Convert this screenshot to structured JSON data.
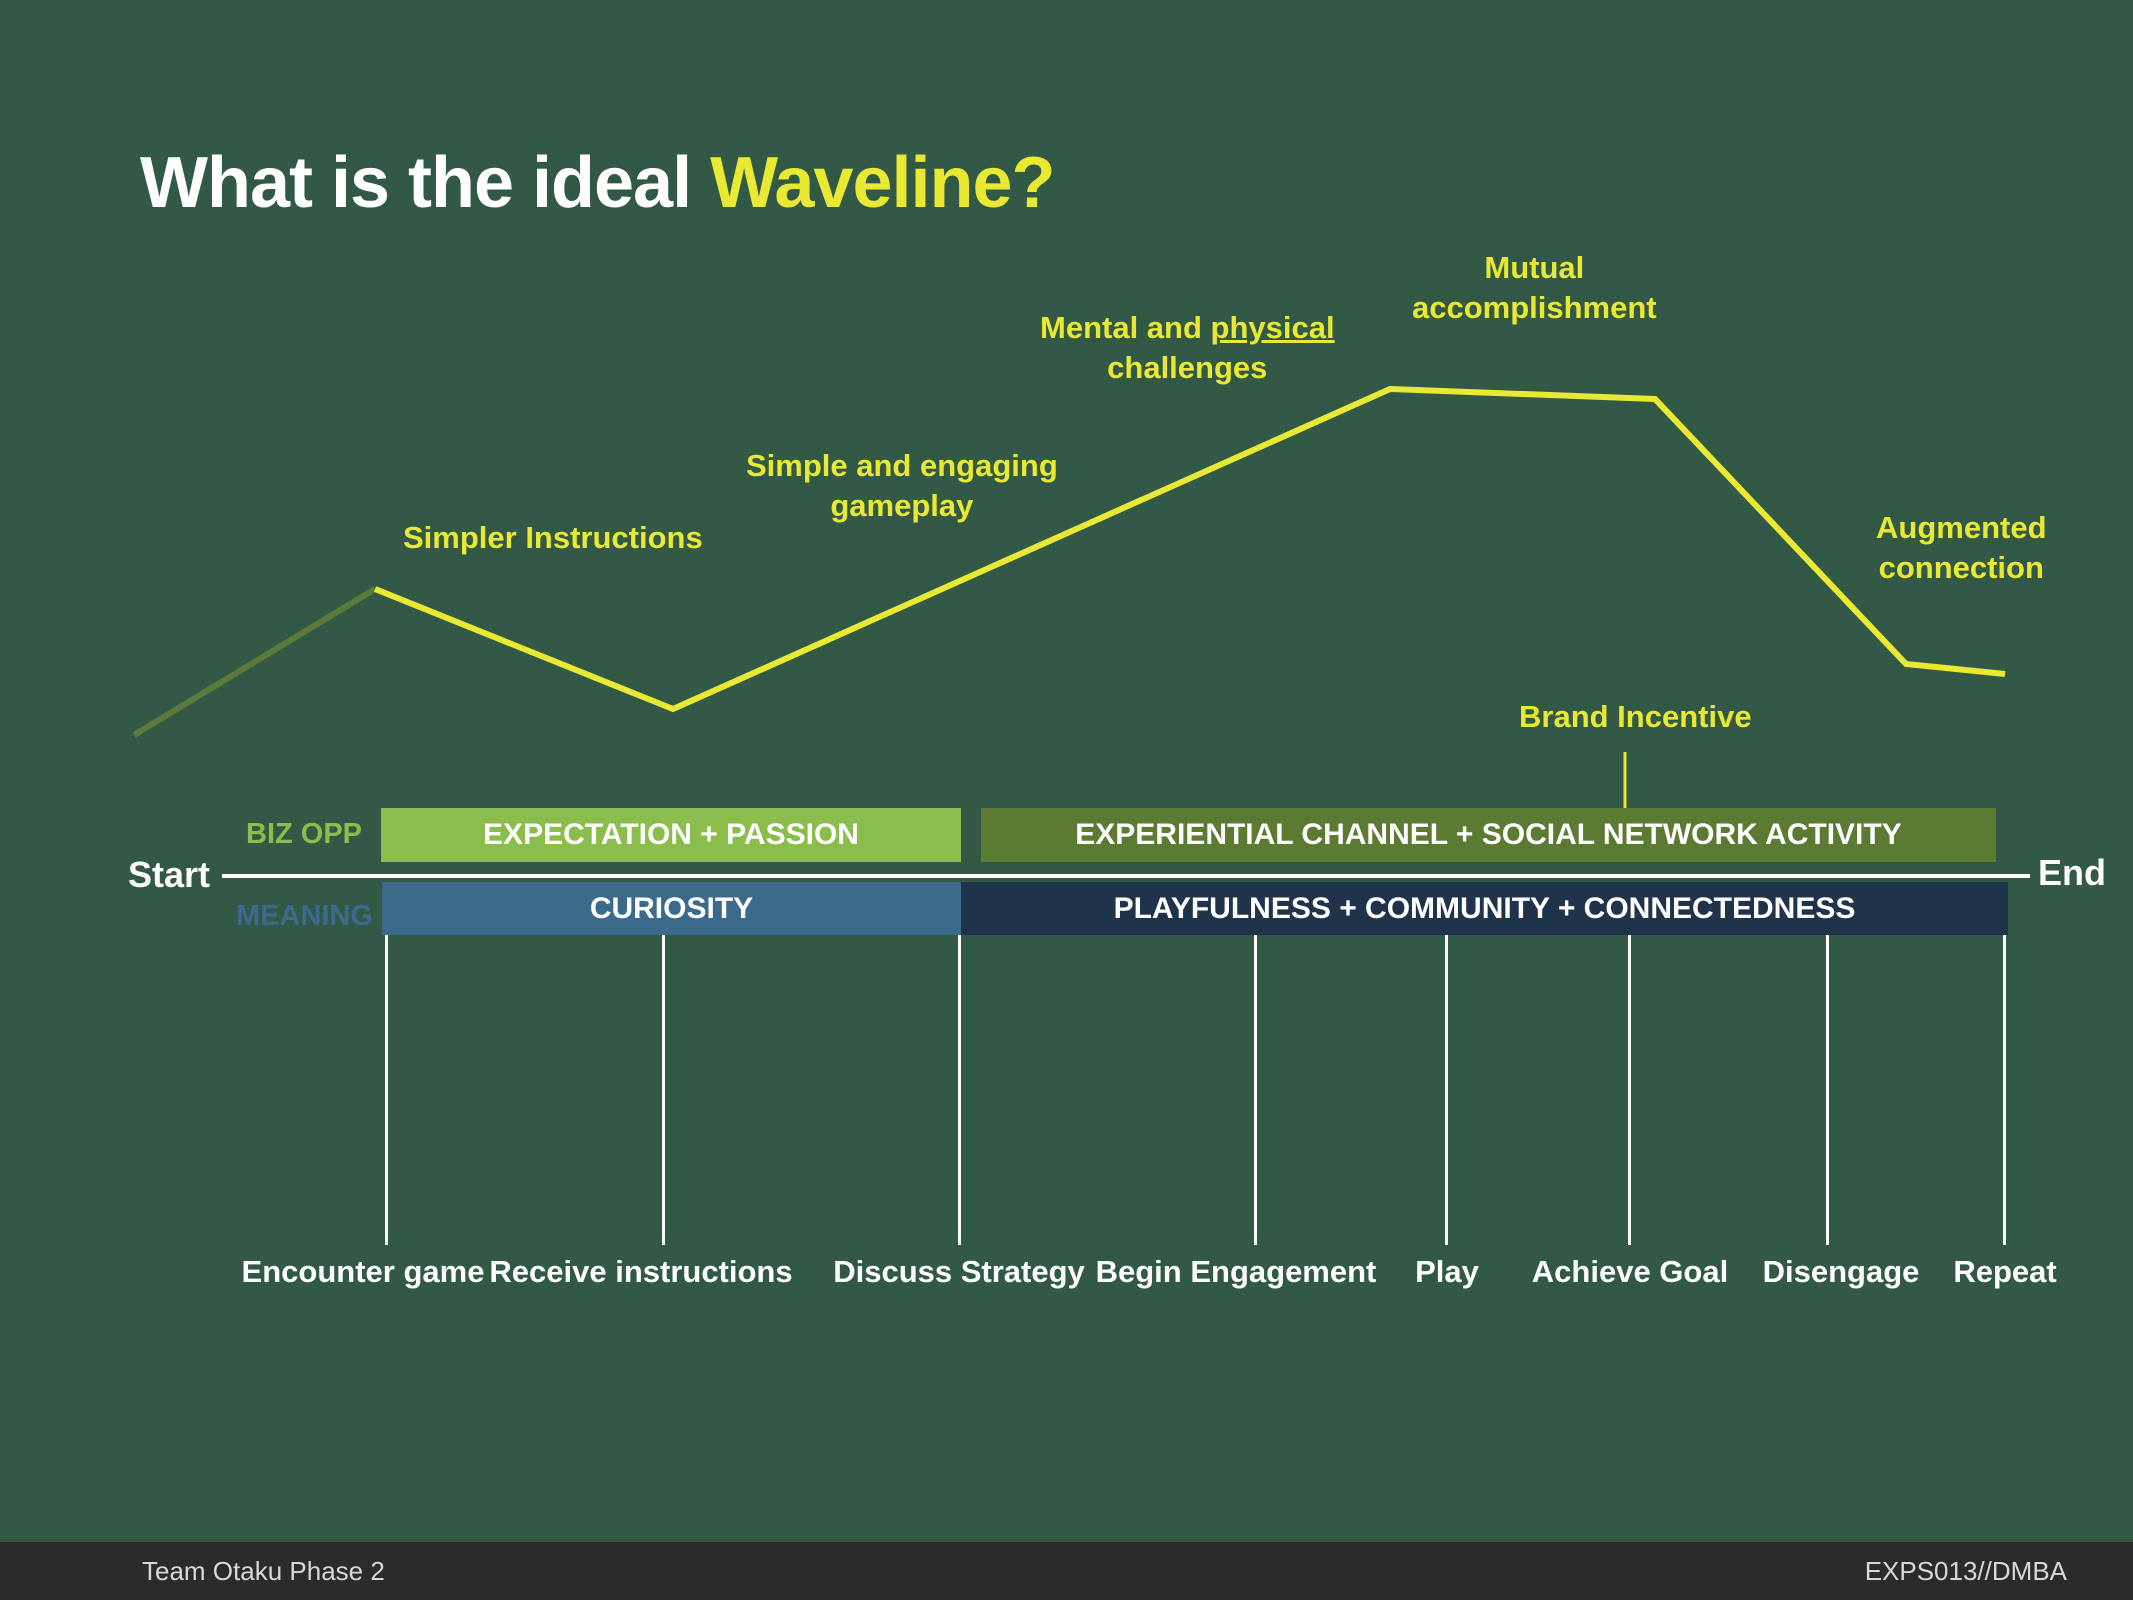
{
  "title": {
    "prefix": "What is the ideal ",
    "highlight": "Waveline?"
  },
  "colors": {
    "background": "#315945",
    "accent_yellow": "#e9e832",
    "wave_start": "#5b7a3b",
    "biz_opp_label": "#8bbd4c",
    "meaning_label": "#3c6a8f",
    "bar_expectation": "#8bbd4c",
    "bar_experiential": "#5b7a32",
    "bar_curiosity": "#3c6a8a",
    "bar_playfulness": "#1f344a",
    "footer_bg": "#2b2b2b"
  },
  "annotations": {
    "simpler_instructions": "Simpler Instructions",
    "simple_gameplay_l1": "Simple and engaging",
    "simple_gameplay_l2": "gameplay",
    "mental_l1_a": "Mental and ",
    "mental_l1_b": "physical",
    "mental_l2": "challenges",
    "mutual_l1": "Mutual",
    "mutual_l2": "accomplishment",
    "augmented_l1": "Augmented",
    "augmented_l2": "connection",
    "brand_incentive": "Brand Incentive"
  },
  "rows": {
    "biz_opp": "BIZ OPP",
    "meaning": "MEANING"
  },
  "bars": {
    "expectation": "EXPECTATION + PASSION",
    "experiential": "EXPERIENTIAL CHANNEL + SOCIAL NETWORK ACTIVITY",
    "curiosity": "CURIOSITY",
    "playfulness": "PLAYFULNESS + COMMUNITY + CONNECTEDNESS"
  },
  "timeline": {
    "start": "Start",
    "end": "End"
  },
  "stages": [
    "Encounter game",
    "Receive instructions",
    "Discuss Strategy",
    "Begin Engagement",
    "Play",
    "Achieve Goal",
    "Disengage",
    "Repeat"
  ],
  "footer": {
    "left": "Team Otaku Phase 2",
    "right": "EXPS013//DMBA"
  }
}
